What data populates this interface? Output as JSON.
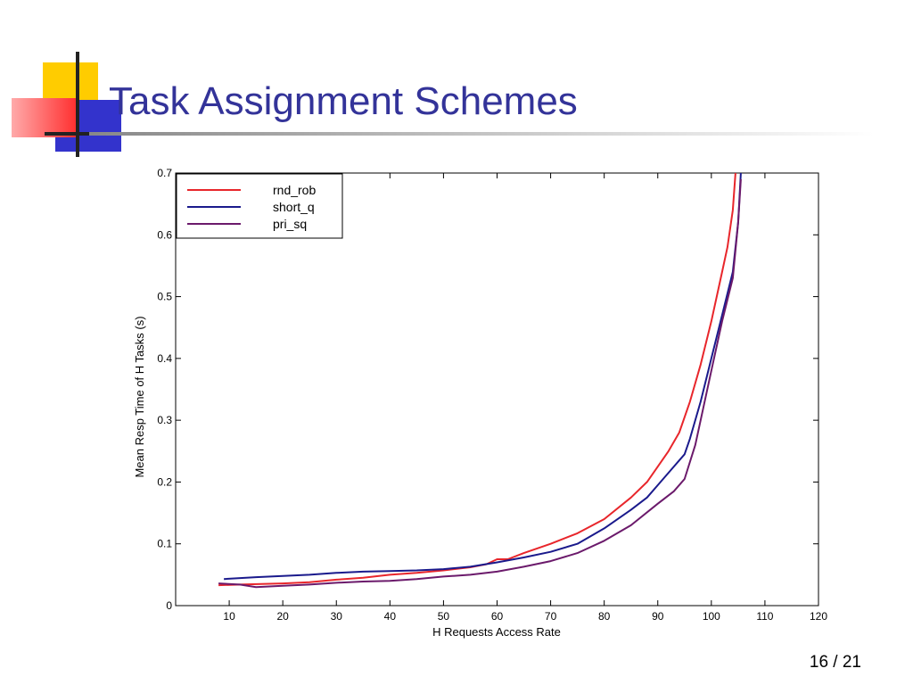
{
  "slide": {
    "title": "Task Assignment Schemes",
    "page_number": "16 / 21"
  },
  "colors": {
    "title": "#333399",
    "accent_yellow": "#FFCC00",
    "accent_red": "#FF3333",
    "accent_blue": "#3333CC",
    "rule": "#999999"
  },
  "chart_data": {
    "type": "line",
    "title": "",
    "xlabel": "H Requests Access Rate",
    "ylabel": "Mean Resp Time of H Tasks (s)",
    "xlim": [
      0,
      120
    ],
    "ylim": [
      0,
      0.7
    ],
    "xticks": [
      10,
      20,
      30,
      40,
      50,
      60,
      70,
      80,
      90,
      100,
      110,
      120
    ],
    "xtick_labels": [
      "10",
      "20",
      "30",
      "40",
      "50",
      "60",
      "70",
      "80",
      "90",
      "100",
      "110",
      "120"
    ],
    "yticks": [
      0,
      0.1,
      0.2,
      0.3,
      0.4,
      0.5,
      0.6,
      0.7
    ],
    "ytick_labels": [
      "0",
      "0.1",
      "0.2",
      "0.3",
      "0.4",
      "0.5",
      "0.6",
      "0.7"
    ],
    "grid": false,
    "legend": "top-left",
    "series": [
      {
        "name": "rnd_rob",
        "color": "#E8262B",
        "style": "solid",
        "x": [
          8,
          12,
          16,
          20,
          25,
          30,
          35,
          40,
          45,
          50,
          55,
          58,
          60,
          62,
          65,
          70,
          75,
          80,
          85,
          88,
          90,
          92,
          94,
          96,
          98,
          100,
          102,
          103,
          104,
          104.5
        ],
        "y": [
          0.033,
          0.034,
          0.035,
          0.036,
          0.038,
          0.042,
          0.045,
          0.05,
          0.053,
          0.057,
          0.062,
          0.067,
          0.075,
          0.075,
          0.085,
          0.1,
          0.117,
          0.14,
          0.175,
          0.2,
          0.225,
          0.25,
          0.28,
          0.33,
          0.39,
          0.46,
          0.54,
          0.58,
          0.64,
          0.7
        ]
      },
      {
        "name": "short_q",
        "color": "#1A1A8C",
        "style": "solid",
        "x": [
          9,
          15,
          20,
          25,
          30,
          35,
          40,
          45,
          50,
          55,
          60,
          65,
          70,
          75,
          80,
          85,
          88,
          90,
          93,
          95,
          96,
          98,
          100,
          102,
          104,
          105,
          105.5
        ],
        "y": [
          0.043,
          0.046,
          0.048,
          0.05,
          0.053,
          0.055,
          0.056,
          0.057,
          0.059,
          0.063,
          0.07,
          0.078,
          0.087,
          0.1,
          0.125,
          0.155,
          0.175,
          0.195,
          0.225,
          0.245,
          0.27,
          0.33,
          0.4,
          0.47,
          0.54,
          0.62,
          0.7
        ]
      },
      {
        "name": "pri_sq",
        "color": "#6B1A6B",
        "style": "solid",
        "x": [
          8,
          12,
          15,
          20,
          25,
          30,
          35,
          40,
          45,
          50,
          55,
          60,
          65,
          70,
          75,
          80,
          85,
          90,
          93,
          95,
          97,
          100,
          102,
          104,
          105,
          105.5
        ],
        "y": [
          0.036,
          0.034,
          0.03,
          0.032,
          0.034,
          0.037,
          0.039,
          0.04,
          0.043,
          0.047,
          0.05,
          0.055,
          0.063,
          0.072,
          0.085,
          0.105,
          0.13,
          0.165,
          0.185,
          0.205,
          0.26,
          0.38,
          0.46,
          0.53,
          0.62,
          0.69
        ]
      }
    ]
  }
}
